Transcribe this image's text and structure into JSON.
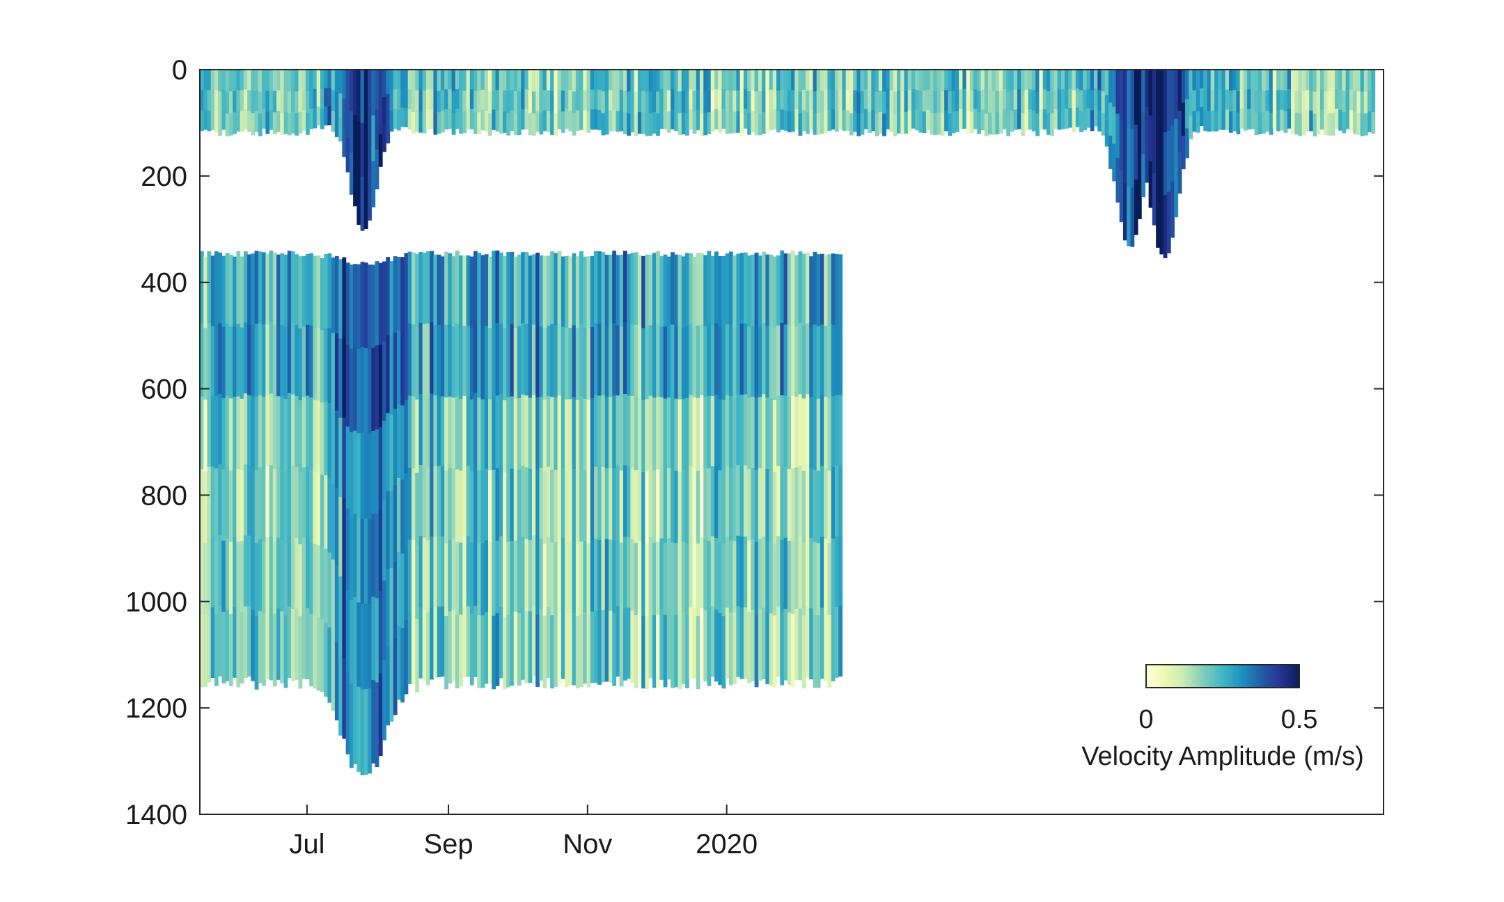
{
  "chart_data": {
    "type": "heatmap",
    "title": "",
    "xlabel": "",
    "ylabel": "",
    "x_ticks": [
      "Jul",
      "Sep",
      "Nov",
      "2020"
    ],
    "x_tick_dates": [
      "2019-07-01",
      "2019-09-01",
      "2019-11-01",
      "2020-01-01"
    ],
    "xlim": [
      "2019-05-15",
      "2020-10-15"
    ],
    "y_ticks": [
      "0",
      "200",
      "400",
      "600",
      "800",
      "1000",
      "1200",
      "1400"
    ],
    "ylim": [
      0,
      1400
    ],
    "y_reversed": true,
    "grid": false,
    "colorbar": {
      "label": "Velocity Amplitude (m/s)",
      "tick_labels": [
        "0",
        "0.5"
      ],
      "range": [
        0,
        0.5
      ],
      "placement": "inside lower-right",
      "colormap": [
        "#ffffd9",
        "#edf8b1",
        "#c7e9b4",
        "#7fcdbb",
        "#41b6c4",
        "#1d91c0",
        "#225ea8",
        "#253494",
        "#081d58"
      ]
    },
    "series": [
      {
        "depth_range": [
          0,
          110
        ],
        "x_range": [
          "2019-05-15",
          "2020-10-10"
        ],
        "typical_velocity": 0.2
      },
      {
        "depth_range": [
          340,
          1140
        ],
        "x_range": [
          "2019-05-15",
          "2020-02-20"
        ],
        "typical_velocity": 0.18
      }
    ],
    "features": [
      {
        "date": "2019-07-25",
        "max_depth": 290,
        "velocity": 0.45
      },
      {
        "date": "2020-06-25",
        "max_depth": 330,
        "velocity": 0.4
      },
      {
        "date": "2020-07-10",
        "max_depth": 350,
        "velocity": 0.42
      }
    ]
  }
}
